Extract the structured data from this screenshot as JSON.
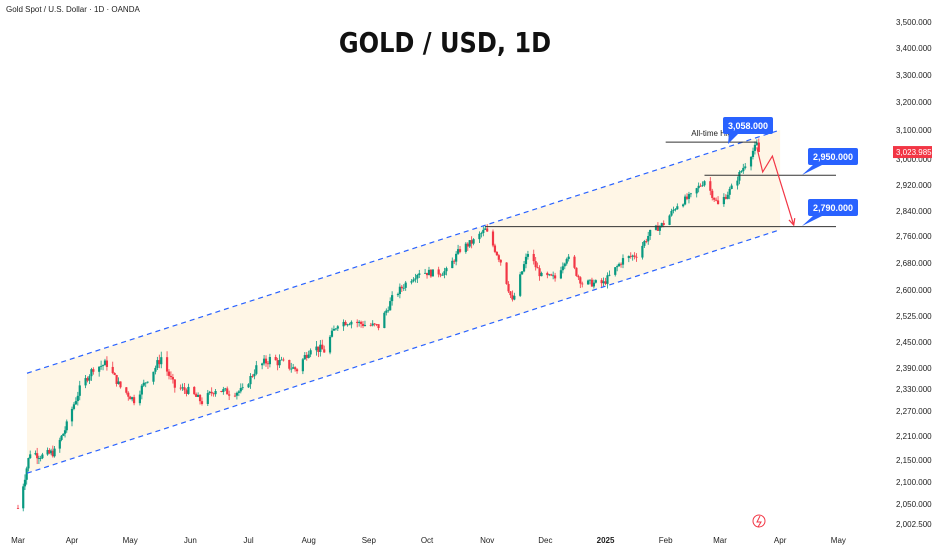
{
  "header": {
    "instrument": "Gold Spot / U.S. Dollar · 1D · OANDA"
  },
  "title": "GOLD / USD, 1D",
  "colors": {
    "up": "#089981",
    "down": "#f23645",
    "channel": "#2962ff",
    "label_bg": "#2962ff",
    "projection": "#f23645",
    "channel_fill": "#fff6e6"
  },
  "chart_data": {
    "type": "candlestick",
    "title": "GOLD / USD, 1D",
    "x_ticks": [
      "Mar",
      "Apr",
      "May",
      "Jun",
      "Jul",
      "Aug",
      "Sep",
      "Oct",
      "Nov",
      "Dec",
      "2025",
      "Feb",
      "Mar",
      "Apr",
      "May"
    ],
    "y_ticks": [
      3500,
      3400,
      3300,
      3200,
      3100,
      3000,
      2920,
      2840,
      2760,
      2680,
      2600,
      2525,
      2450,
      2390,
      2330,
      2270,
      2210,
      2150,
      2100,
      2050,
      2002.5
    ],
    "y_tick_labels": [
      "3,500.000",
      "3,400.000",
      "3,300.000",
      "3,200.000",
      "3,100.000",
      "3,000.000",
      "2,920.000",
      "2,840.000",
      "2,760.000",
      "2,680.000",
      "2,600.000",
      "2,525.000",
      "2,450.000",
      "2,390.000",
      "2,330.000",
      "2,270.000",
      "2,210.000",
      "2,150.000",
      "2,100.000",
      "2,050.000",
      "2,002.500"
    ],
    "close_path": [
      [
        "2024-03-01",
        2040
      ],
      [
        "2024-03-08",
        2170
      ],
      [
        "2024-03-15",
        2160
      ],
      [
        "2024-03-22",
        2170
      ],
      [
        "2024-03-29",
        2235
      ],
      [
        "2024-04-05",
        2330
      ],
      [
        "2024-04-12",
        2390
      ],
      [
        "2024-04-19",
        2400
      ],
      [
        "2024-04-26",
        2335
      ],
      [
        "2024-05-03",
        2300
      ],
      [
        "2024-05-10",
        2360
      ],
      [
        "2024-05-17",
        2415
      ],
      [
        "2024-05-24",
        2335
      ],
      [
        "2024-05-31",
        2325
      ],
      [
        "2024-06-07",
        2295
      ],
      [
        "2024-06-14",
        2330
      ],
      [
        "2024-06-21",
        2320
      ],
      [
        "2024-06-28",
        2325
      ],
      [
        "2024-07-05",
        2390
      ],
      [
        "2024-07-12",
        2410
      ],
      [
        "2024-07-19",
        2400
      ],
      [
        "2024-07-26",
        2385
      ],
      [
        "2024-08-02",
        2440
      ],
      [
        "2024-08-09",
        2430
      ],
      [
        "2024-08-16",
        2505
      ],
      [
        "2024-08-23",
        2510
      ],
      [
        "2024-08-30",
        2500
      ],
      [
        "2024-09-06",
        2495
      ],
      [
        "2024-09-13",
        2575
      ],
      [
        "2024-09-20",
        2620
      ],
      [
        "2024-09-27",
        2655
      ],
      [
        "2024-10-04",
        2650
      ],
      [
        "2024-10-11",
        2655
      ],
      [
        "2024-10-18",
        2720
      ],
      [
        "2024-10-25",
        2745
      ],
      [
        "2024-10-31",
        2780
      ],
      [
        "2024-11-08",
        2685
      ],
      [
        "2024-11-14",
        2565
      ],
      [
        "2024-11-22",
        2710
      ],
      [
        "2024-11-29",
        2640
      ],
      [
        "2024-12-06",
        2635
      ],
      [
        "2024-12-12",
        2700
      ],
      [
        "2024-12-20",
        2620
      ],
      [
        "2024-12-31",
        2620
      ],
      [
        "2025-01-10",
        2690
      ],
      [
        "2025-01-17",
        2705
      ],
      [
        "2025-01-24",
        2770
      ],
      [
        "2025-01-31",
        2800
      ],
      [
        "2025-02-07",
        2860
      ],
      [
        "2025-02-14",
        2885
      ],
      [
        "2025-02-21",
        2935
      ],
      [
        "2025-02-28",
        2858
      ],
      [
        "2025-03-07",
        2910
      ],
      [
        "2025-03-14",
        2985
      ],
      [
        "2025-03-20",
        3050
      ],
      [
        "2025-03-21",
        3023.985
      ]
    ],
    "channel": {
      "upper": {
        "from": [
          "2024-03-01",
          2375
        ],
        "to": [
          "2025-04-01",
          3100
        ]
      },
      "lower": {
        "from": [
          "2024-03-01",
          2120
        ],
        "to": [
          "2025-04-01",
          2780
        ]
      }
    },
    "levels": [
      {
        "value": 3058,
        "label": "3,058.000",
        "from": "2025-02-01",
        "to": "2025-03-20",
        "annotation": "All-time High"
      },
      {
        "value": 2950,
        "label": "2,950.000",
        "from": "2025-02-21",
        "to": "2025-05-01"
      },
      {
        "value": 2790,
        "label": "2,790.000",
        "from": "2024-10-31",
        "to": "2025-05-01"
      }
    ],
    "projection": [
      [
        "2025-03-20",
        3040
      ],
      [
        "2025-03-23",
        2960
      ],
      [
        "2025-03-28",
        3010
      ],
      [
        "2025-04-08",
        2795
      ]
    ],
    "current_price": {
      "value": 3023.985,
      "label": "3,023.985"
    }
  }
}
